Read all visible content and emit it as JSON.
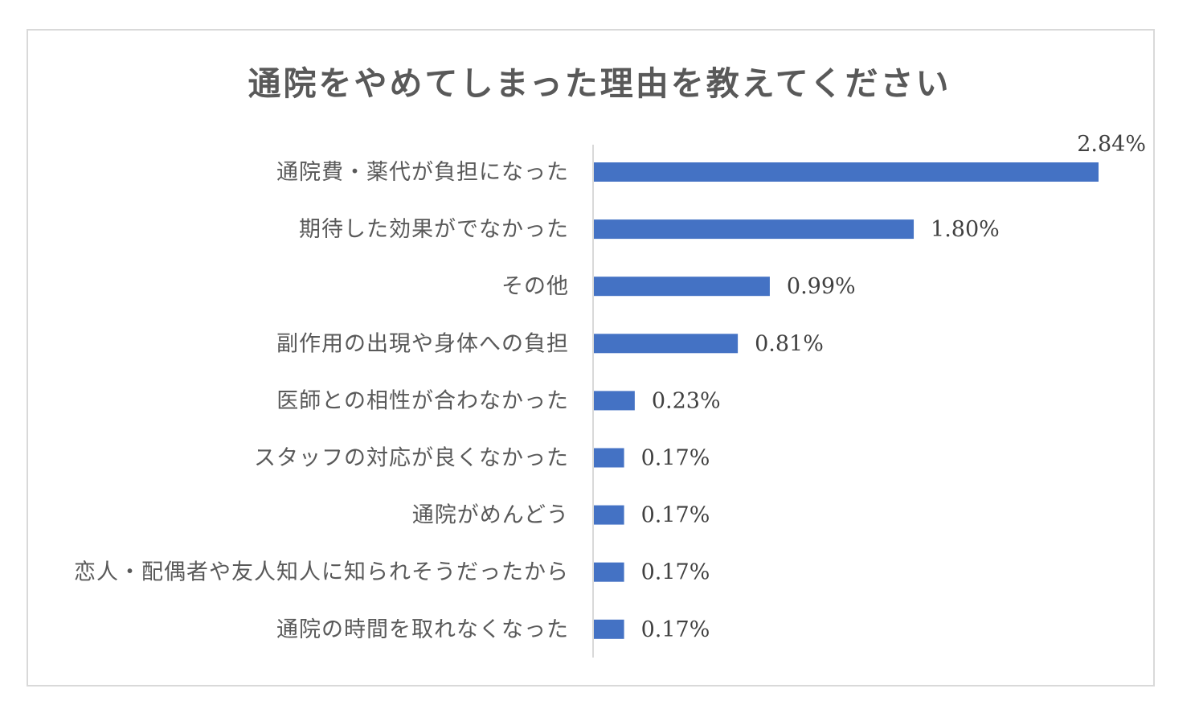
{
  "chart_data": {
    "type": "bar",
    "orientation": "horizontal",
    "title": "通院をやめてしまった理由を教えてください",
    "categories": [
      "通院費・薬代が負担になった",
      "期待した効果がでなかった",
      "その他",
      "副作用の出現や身体への負担",
      "医師との相性が合わなかった",
      "スタッフの対応が良くなかった",
      "通院がめんどう",
      "恋人・配偶者や友人知人に知られそうだったから",
      "通院の時間を取れなくなった"
    ],
    "values": [
      2.84,
      1.8,
      0.99,
      0.81,
      0.23,
      0.17,
      0.17,
      0.17,
      0.17
    ],
    "value_labels": [
      "2.84%",
      "1.80%",
      "0.99%",
      "0.81%",
      "0.23%",
      "0.17%",
      "0.17%",
      "0.17%",
      "0.17%"
    ],
    "unit": "%",
    "xlim": [
      0,
      2.84
    ],
    "bar_color": "#4472c4",
    "grid": false,
    "legend": "none"
  }
}
